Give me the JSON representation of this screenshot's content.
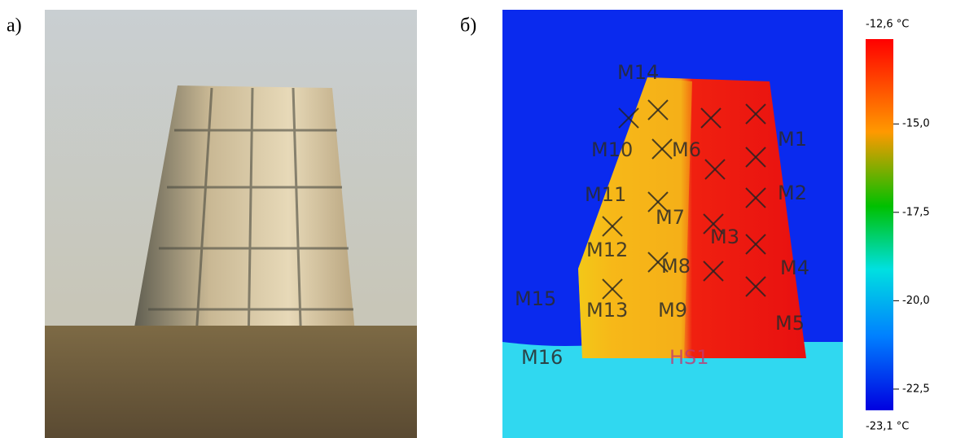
{
  "panels": [
    {
      "caption": "а)"
    },
    {
      "caption": "б)",
      "markers": [
        "M1",
        "M2",
        "M3",
        "M4",
        "M5",
        "M6",
        "M7",
        "M8",
        "M9",
        "M10",
        "M11",
        "M12",
        "M13",
        "M14",
        "M15",
        "M16",
        "HS1"
      ],
      "colorbar": {
        "max": {
          "value": -12.6,
          "label": "-12,6 °C"
        },
        "min": {
          "value": -23.1,
          "label": "-23,1 °C"
        },
        "ticks": [
          {
            "value": -15.0,
            "label": "-15,0"
          },
          {
            "value": -17.5,
            "label": "-17,5"
          },
          {
            "value": -20.0,
            "label": "-20,0"
          },
          {
            "value": -22.5,
            "label": "-22,5"
          }
        ]
      }
    }
  ]
}
